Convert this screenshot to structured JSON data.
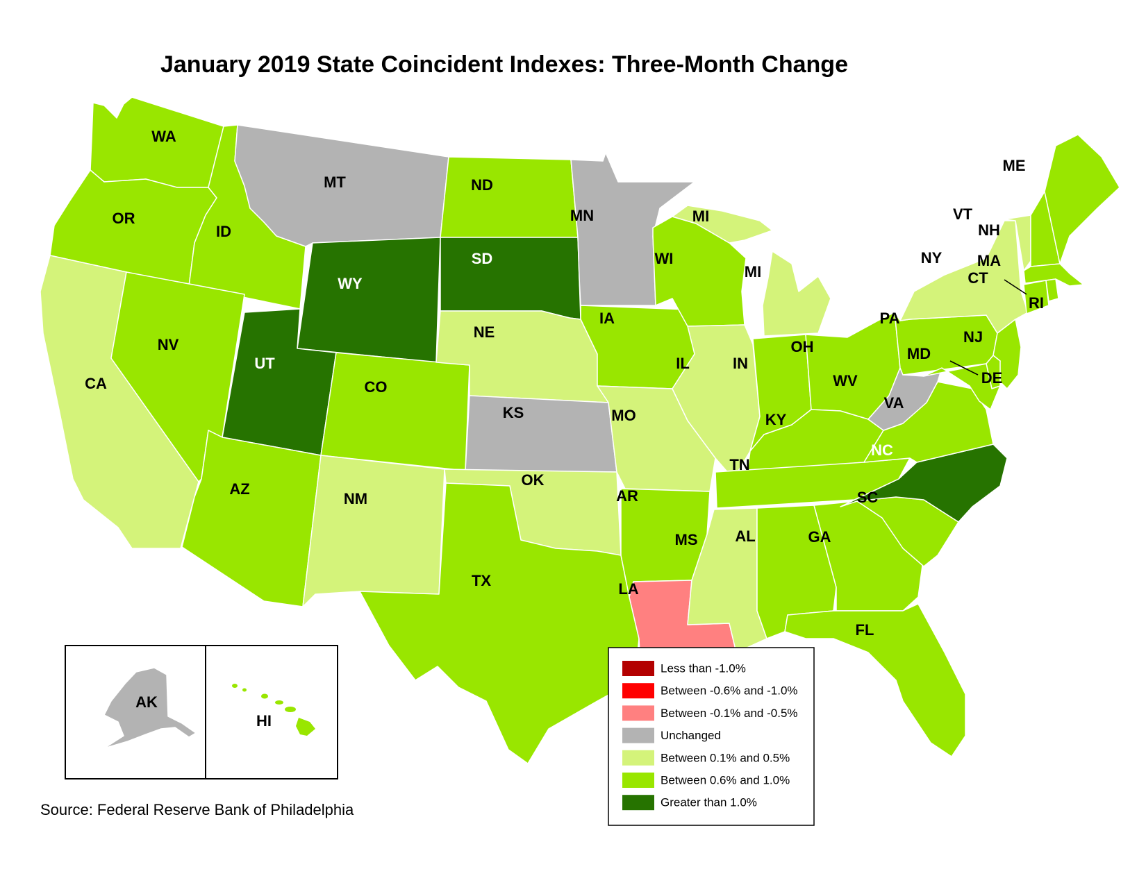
{
  "title": "January 2019 State Coincident Indexes: Three-Month Change",
  "source": "Source: Federal Reserve Bank of Philadelphia",
  "colors": {
    "lt_neg1": "#b30000",
    "neg06_10": "#ff0000",
    "neg01_05": "#ff8080",
    "unchanged": "#b3b3b3",
    "pos01_05": "#d4f37a",
    "pos06_10": "#99e600",
    "gt1": "#267300"
  },
  "legend": [
    {
      "key": "lt_neg1",
      "label": "Less than -1.0%"
    },
    {
      "key": "neg06_10",
      "label": "Between -0.6% and -1.0%"
    },
    {
      "key": "neg01_05",
      "label": "Between -0.1% and -0.5%"
    },
    {
      "key": "unchanged",
      "label": "Unchanged"
    },
    {
      "key": "pos01_05",
      "label": "Between 0.1% and 0.5%"
    },
    {
      "key": "pos06_10",
      "label": "Between 0.6% and 1.0%"
    },
    {
      "key": "gt1",
      "label": "Greater than 1.0%"
    }
  ],
  "states": {
    "WA": "pos06_10",
    "OR": "pos06_10",
    "CA": "pos01_05",
    "ID": "pos06_10",
    "NV": "pos06_10",
    "MT": "unchanged",
    "WY": "gt1",
    "UT": "gt1",
    "AZ": "pos06_10",
    "CO": "pos06_10",
    "NM": "pos01_05",
    "ND": "pos06_10",
    "SD": "gt1",
    "NE": "pos01_05",
    "KS": "unchanged",
    "OK": "pos01_05",
    "TX": "pos06_10",
    "MN": "unchanged",
    "IA": "pos06_10",
    "MO": "pos01_05",
    "AR": "pos06_10",
    "LA": "neg01_05",
    "WI": "pos06_10",
    "IL": "pos01_05",
    "MI": "pos01_05",
    "IN": "pos06_10",
    "OH": "pos06_10",
    "KY": "pos06_10",
    "TN": "pos06_10",
    "MS": "pos01_05",
    "AL": "pos06_10",
    "GA": "pos06_10",
    "FL": "pos06_10",
    "SC": "pos06_10",
    "NC": "gt1",
    "VA": "pos06_10",
    "WV": "unchanged",
    "PA": "pos06_10",
    "NY": "pos01_05",
    "VT": "pos01_05",
    "NH": "pos06_10",
    "ME": "pos06_10",
    "MA": "pos06_10",
    "CT": "pos06_10",
    "RI": "pos06_10",
    "NJ": "pos06_10",
    "DE": "pos06_10",
    "MD": "pos06_10",
    "AK": "unchanged",
    "HI": "pos06_10"
  },
  "labels": {
    "WA": "WA",
    "OR": "OR",
    "CA": "CA",
    "ID": "ID",
    "NV": "NV",
    "MT": "MT",
    "WY": "WY",
    "UT": "UT",
    "AZ": "AZ",
    "CO": "CO",
    "NM": "NM",
    "ND": "ND",
    "SD": "SD",
    "NE": "NE",
    "KS": "KS",
    "OK": "OK",
    "TX": "TX",
    "MN": "MN",
    "IA": "IA",
    "MO": "MO",
    "AR": "AR",
    "LA": "LA",
    "WI": "WI",
    "IL": "IL",
    "MI_UP": "MI",
    "MI_LP": "MI",
    "IN": "IN",
    "OH": "OH",
    "KY": "KY",
    "TN": "TN",
    "MS": "MS",
    "AL": "AL",
    "GA": "GA",
    "FL": "FL",
    "SC": "SC",
    "NC": "NC",
    "VA": "VA",
    "WV": "WV",
    "PA": "PA",
    "NY": "NY",
    "VT": "VT",
    "NH": "NH",
    "ME": "ME",
    "MA": "MA",
    "CT": "CT",
    "RI": "RI",
    "NJ": "NJ",
    "DE": "DE",
    "MD": "MD",
    "AK": "AK",
    "HI": "HI"
  }
}
